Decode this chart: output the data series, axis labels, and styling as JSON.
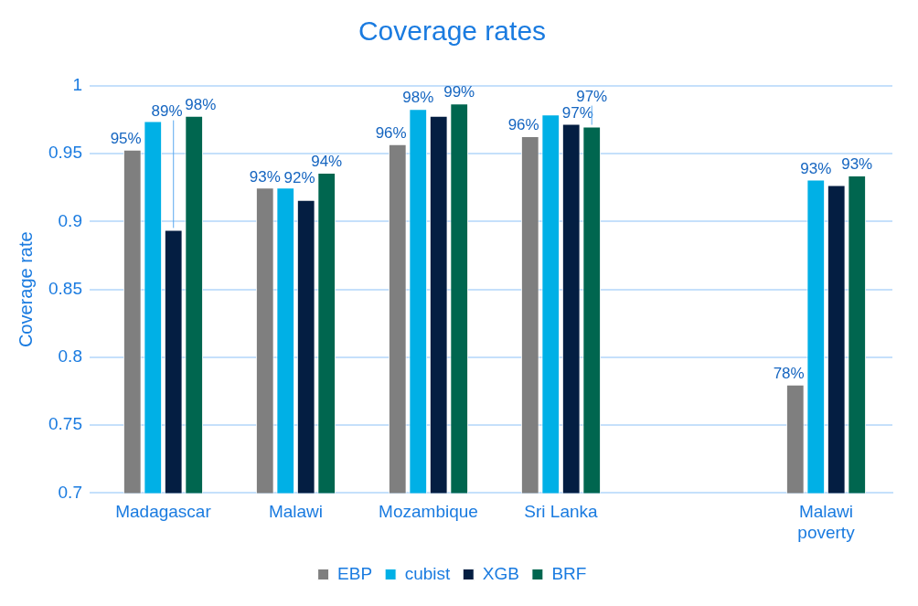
{
  "chart_data": {
    "type": "bar",
    "title": "Coverage rates",
    "ylabel": "Coverage rate",
    "categories": [
      "Madagascar",
      "Malawi",
      "Mozambique",
      "Sri Lanka",
      null,
      "Malawi poverty"
    ],
    "series": [
      {
        "name": "EBP",
        "color": "#7f7f7f",
        "values": [
          0.953,
          0.925,
          0.957,
          0.963,
          null,
          0.78
        ],
        "value_labels": [
          "95%",
          "93%",
          "96%",
          "96%",
          null,
          "78%"
        ]
      },
      {
        "name": "cubist",
        "color": "#00b0e6",
        "values": [
          0.974,
          0.925,
          0.983,
          0.979,
          null,
          0.931
        ],
        "value_labels": [
          null,
          null,
          "98%",
          null,
          null,
          "93%"
        ]
      },
      {
        "name": "XGB",
        "color": "#041e42",
        "values": [
          0.894,
          0.916,
          0.978,
          0.972,
          null,
          0.927
        ],
        "value_labels": [
          "89%",
          "92%",
          null,
          "97%",
          null,
          null
        ]
      },
      {
        "name": "BRF",
        "color": "#00664f",
        "values": [
          0.978,
          0.936,
          0.987,
          0.97,
          null,
          0.934
        ],
        "value_labels": [
          "98%",
          "94%",
          "99%",
          "97%",
          null,
          "93%"
        ]
      }
    ],
    "ylim": [
      0.7,
      1
    ],
    "yticks": [
      0.7,
      0.75,
      0.8,
      0.85,
      0.9,
      0.95,
      1
    ],
    "grid": "y",
    "legend": "bottom"
  }
}
